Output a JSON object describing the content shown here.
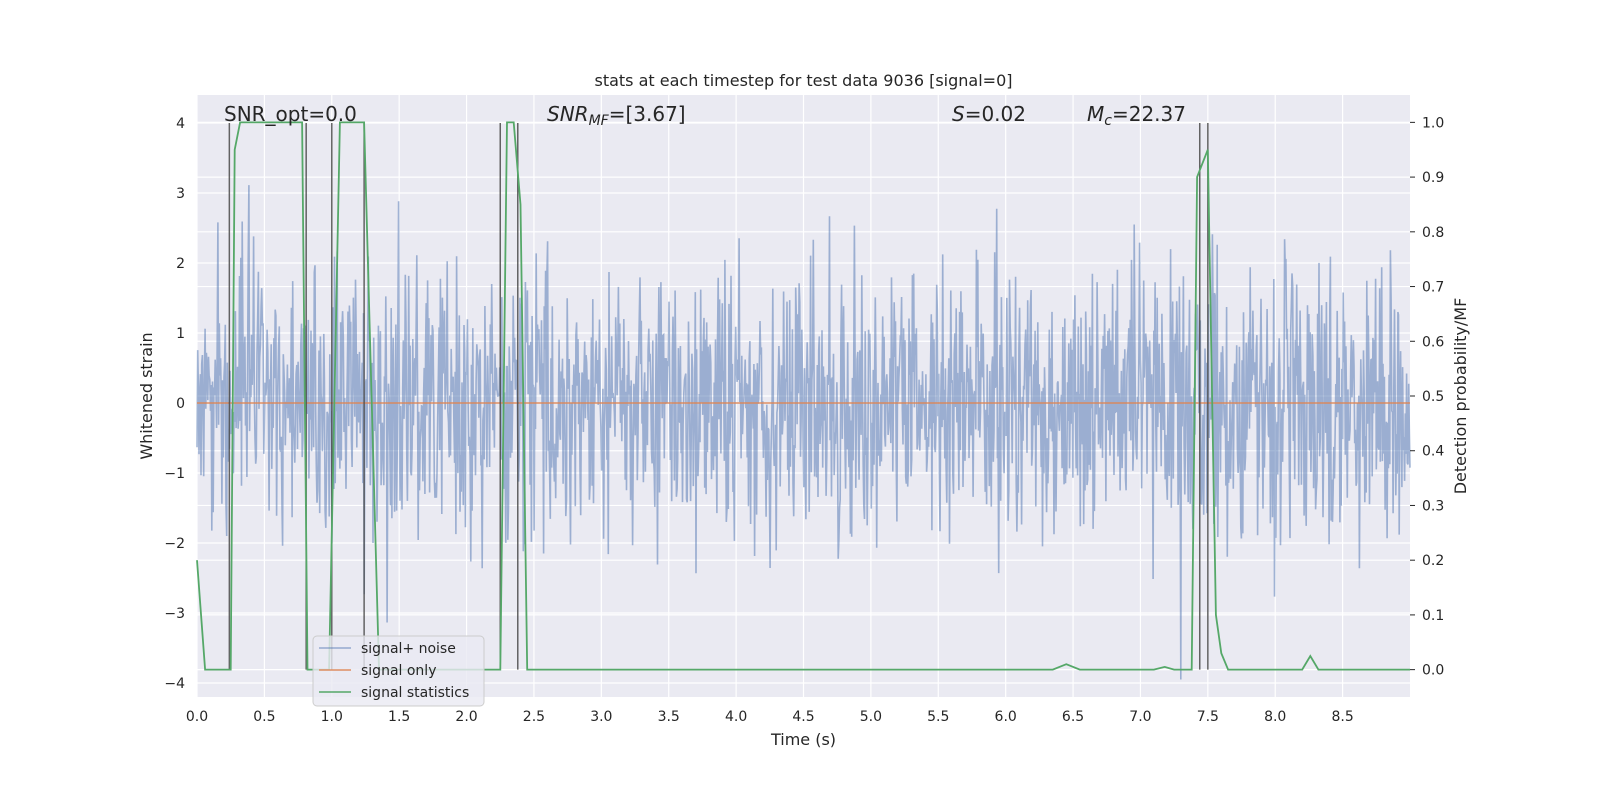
{
  "chart_data": {
    "type": "line",
    "title": "stats at each timestep for test data 9036 [signal=0]",
    "xlabel": "Time (s)",
    "ylabel": "Whitened strain",
    "y2label": "Detection probability/MF",
    "xlim": [
      0.0,
      9.0
    ],
    "ylim": [
      -4.2,
      4.4
    ],
    "y2lim": [
      -0.05,
      1.05
    ],
    "xticks": [
      "0.0",
      "0.5",
      "1.0",
      "1.5",
      "2.0",
      "2.5",
      "3.0",
      "3.5",
      "4.0",
      "4.5",
      "5.0",
      "5.5",
      "6.0",
      "6.5",
      "7.0",
      "7.5",
      "8.0",
      "8.5"
    ],
    "xtick_values": [
      0.0,
      0.5,
      1.0,
      1.5,
      2.0,
      2.5,
      3.0,
      3.5,
      4.0,
      4.5,
      5.0,
      5.5,
      6.0,
      6.5,
      7.0,
      7.5,
      8.0,
      8.5
    ],
    "yticks": [
      "−4",
      "−3",
      "−2",
      "−1",
      "0",
      "1",
      "2",
      "3",
      "4"
    ],
    "ytick_values": [
      -4,
      -3,
      -2,
      -1,
      0,
      1,
      2,
      3,
      4
    ],
    "y2ticks": [
      "0.0",
      "0.1",
      "0.2",
      "0.3",
      "0.4",
      "0.5",
      "0.6",
      "0.7",
      "0.8",
      "0.9",
      "1.0"
    ],
    "y2tick_values": [
      0.0,
      0.1,
      0.2,
      0.3,
      0.4,
      0.5,
      0.6,
      0.7,
      0.8,
      0.9,
      1.0
    ],
    "annotations": {
      "snr_opt": "SNR_opt=0.0",
      "snr_mf": "=[3.67]",
      "snr_mf_symbol": "SNR",
      "snr_mf_sub": "MF",
      "s_symbol": "S",
      "s_value": "=0.02",
      "mc_symbol": "M",
      "mc_sub": "c",
      "mc_value": "=22.37"
    },
    "noise_series": {
      "name": "signal+ noise",
      "color": "#4c72b0",
      "n_samples": 1800,
      "sigma": 0.95,
      "seed": 9036
    },
    "signal_series": {
      "name": "signal only",
      "color": "#dd8452",
      "value": 0.0
    },
    "stat_series": {
      "name": "signal statistics",
      "color": "#55a868",
      "x": [
        0.0,
        0.06,
        0.1,
        0.25,
        0.28,
        0.32,
        0.38,
        0.6,
        0.78,
        0.82,
        0.86,
        0.98,
        1.06,
        1.1,
        1.24,
        1.35,
        1.4,
        2.22,
        2.25,
        2.3,
        2.35,
        2.4,
        2.45,
        2.5,
        2.55,
        6.35,
        6.45,
        6.55,
        7.1,
        7.18,
        7.25,
        7.38,
        7.42,
        7.5,
        7.56,
        7.6,
        7.65,
        8.18,
        8.2,
        8.26,
        8.32,
        9.0
      ],
      "y": [
        0.2,
        0.0,
        0.0,
        0.0,
        0.95,
        1.0,
        1.0,
        1.0,
        1.0,
        0.0,
        0.0,
        0.0,
        1.0,
        1.0,
        1.0,
        0.0,
        0.0,
        0.0,
        0.0,
        1.0,
        1.0,
        0.85,
        0.0,
        0.0,
        0.0,
        0.0,
        0.01,
        0.0,
        0.0,
        0.005,
        0.0,
        0.0,
        0.9,
        0.95,
        0.1,
        0.03,
        0.0,
        0.0,
        0.0,
        0.025,
        0.0,
        0.0
      ]
    },
    "trigger_lines": [
      0.24,
      0.81,
      1.0,
      1.24,
      2.25,
      2.38,
      7.44,
      7.5
    ],
    "legend": {
      "placement": "lower-left",
      "entries": [
        "signal+ noise",
        "signal only",
        "signal statistics"
      ]
    }
  }
}
